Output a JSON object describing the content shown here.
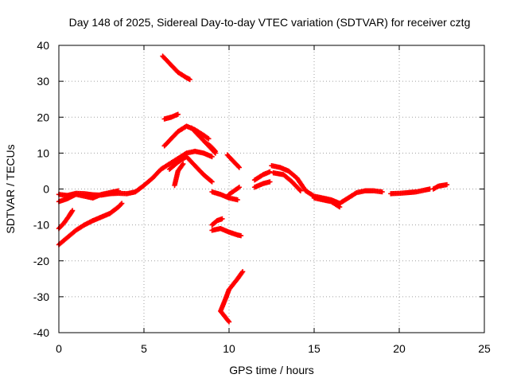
{
  "chart_data": {
    "type": "scatter",
    "title": "Day 148 of 2025, Sidereal Day-to-day VTEC variation (SDTVAR) for receiver cztg",
    "xlabel": "GPS time / hours",
    "ylabel": "SDTVAR / TECUs",
    "xlim": [
      0,
      25
    ],
    "ylim": [
      -40,
      40
    ],
    "xticks": [
      0,
      5,
      10,
      15,
      20,
      25
    ],
    "yticks": [
      -40,
      -30,
      -20,
      -10,
      0,
      10,
      20,
      30,
      40
    ],
    "grid": true,
    "marker": "+",
    "series": [
      {
        "name": "SDTVAR",
        "color": "#ff0000",
        "segments": [
          [
            [
              0.0,
              -1.5
            ],
            [
              0.5,
              -1.8
            ],
            [
              1.0,
              -1.2
            ],
            [
              1.5,
              -1.3
            ],
            [
              2.0,
              -1.6
            ],
            [
              2.5,
              -1.7
            ],
            [
              3.0,
              -1.3
            ],
            [
              3.5,
              -1.2
            ],
            [
              4.0,
              -1.3
            ],
            [
              4.5,
              -0.8
            ],
            [
              5.0,
              1.0
            ],
            [
              5.5,
              3.0
            ],
            [
              6.0,
              5.5
            ],
            [
              6.5,
              7.0
            ],
            [
              7.0,
              8.5
            ],
            [
              7.5,
              10.0
            ],
            [
              8.0,
              10.5
            ],
            [
              8.5,
              10.0
            ],
            [
              9.0,
              9.0
            ]
          ],
          [
            [
              0.0,
              -3.5
            ],
            [
              0.5,
              -2.7
            ],
            [
              1.0,
              -1.5
            ],
            [
              1.5,
              -2.0
            ],
            [
              2.0,
              -2.5
            ],
            [
              2.5,
              -1.5
            ],
            [
              3.0,
              -1.0
            ],
            [
              3.5,
              -0.5
            ]
          ],
          [
            [
              0.0,
              -11.0
            ],
            [
              0.3,
              -9.5
            ],
            [
              0.6,
              -7.5
            ],
            [
              0.8,
              -6.0
            ]
          ],
          [
            [
              0.0,
              -15.5
            ],
            [
              0.5,
              -13.5
            ],
            [
              1.0,
              -11.5
            ],
            [
              1.5,
              -10.0
            ],
            [
              2.0,
              -8.8
            ],
            [
              2.5,
              -7.8
            ],
            [
              3.0,
              -6.8
            ],
            [
              3.5,
              -5.0
            ],
            [
              3.7,
              -4.0
            ]
          ],
          [
            [
              6.1,
              37.0
            ],
            [
              6.5,
              35.0
            ],
            [
              7.0,
              32.5
            ],
            [
              7.5,
              31.0
            ],
            [
              7.7,
              30.5
            ]
          ],
          [
            [
              6.2,
              19.5
            ],
            [
              6.6,
              20.0
            ],
            [
              7.0,
              20.8
            ]
          ],
          [
            [
              6.2,
              12.0
            ],
            [
              6.6,
              14.0
            ],
            [
              7.0,
              16.0
            ],
            [
              7.5,
              17.5
            ],
            [
              8.0,
              16.5
            ],
            [
              8.5,
              15.0
            ],
            [
              8.8,
              14.0
            ]
          ],
          [
            [
              6.5,
              5.5
            ],
            [
              7.0,
              7.5
            ],
            [
              7.5,
              9.0
            ],
            [
              8.0,
              6.5
            ],
            [
              8.5,
              4.0
            ],
            [
              8.8,
              2.8
            ],
            [
              9.0,
              2.0
            ]
          ],
          [
            [
              6.8,
              1.0
            ],
            [
              7.0,
              5.0
            ],
            [
              7.3,
              7.0
            ]
          ],
          [
            [
              7.8,
              17.0
            ],
            [
              8.2,
              15.0
            ],
            [
              8.6,
              13.0
            ],
            [
              9.0,
              11.0
            ],
            [
              9.2,
              10.0
            ]
          ],
          [
            [
              8.6,
              13.0
            ],
            [
              8.9,
              12.0
            ],
            [
              9.2,
              10.5
            ]
          ],
          [
            [
              9.0,
              -0.8
            ],
            [
              9.5,
              -1.5
            ],
            [
              10.0,
              -2.5
            ],
            [
              10.5,
              -3.0
            ]
          ],
          [
            [
              10.0,
              -1.5
            ],
            [
              10.3,
              -0.5
            ],
            [
              10.6,
              0.5
            ]
          ],
          [
            [
              10.0,
              -37.0
            ],
            [
              9.5,
              -34.0
            ],
            [
              9.8,
              -30.5
            ],
            [
              10.0,
              -28.0
            ],
            [
              10.5,
              -25.0
            ],
            [
              10.8,
              -23.0
            ]
          ],
          [
            [
              9.0,
              -10.0
            ],
            [
              9.3,
              -8.8
            ],
            [
              9.6,
              -8.3
            ]
          ],
          [
            [
              9.0,
              -11.5
            ],
            [
              9.5,
              -11.0
            ],
            [
              10.0,
              -12.0
            ],
            [
              10.5,
              -12.8
            ],
            [
              10.7,
              -13.0
            ]
          ],
          [
            [
              9.9,
              9.5
            ],
            [
              10.3,
              7.5
            ],
            [
              10.6,
              6.0
            ]
          ],
          [
            [
              11.5,
              2.5
            ],
            [
              12.0,
              4.0
            ],
            [
              12.4,
              4.8
            ]
          ],
          [
            [
              11.5,
              0.5
            ],
            [
              12.0,
              1.5
            ],
            [
              12.4,
              2.0
            ]
          ],
          [
            [
              12.5,
              6.5
            ],
            [
              13.0,
              6.0
            ],
            [
              13.5,
              5.0
            ],
            [
              14.0,
              3.0
            ],
            [
              14.5,
              -0.5
            ],
            [
              15.0,
              -2.0
            ],
            [
              15.5,
              -2.5
            ],
            [
              16.0,
              -3.0
            ],
            [
              16.5,
              -4.0
            ],
            [
              17.0,
              -2.5
            ],
            [
              17.5,
              -1.0
            ],
            [
              18.0,
              -0.5
            ],
            [
              18.5,
              -0.5
            ],
            [
              19.0,
              -0.8
            ]
          ],
          [
            [
              12.6,
              4.5
            ],
            [
              13.2,
              4.0
            ],
            [
              13.7,
              2.0
            ],
            [
              14.2,
              -0.5
            ]
          ],
          [
            [
              15.0,
              -2.5
            ],
            [
              15.5,
              -3.0
            ],
            [
              16.0,
              -3.5
            ],
            [
              16.5,
              -5.0
            ]
          ],
          [
            [
              19.5,
              -1.3
            ],
            [
              20.0,
              -1.2
            ],
            [
              20.5,
              -1.0
            ],
            [
              21.0,
              -0.8
            ],
            [
              21.5,
              -0.3
            ],
            [
              21.8,
              0.0
            ]
          ],
          [
            [
              22.0,
              0.0
            ],
            [
              22.3,
              0.8
            ],
            [
              22.8,
              1.2
            ]
          ]
        ]
      }
    ]
  }
}
